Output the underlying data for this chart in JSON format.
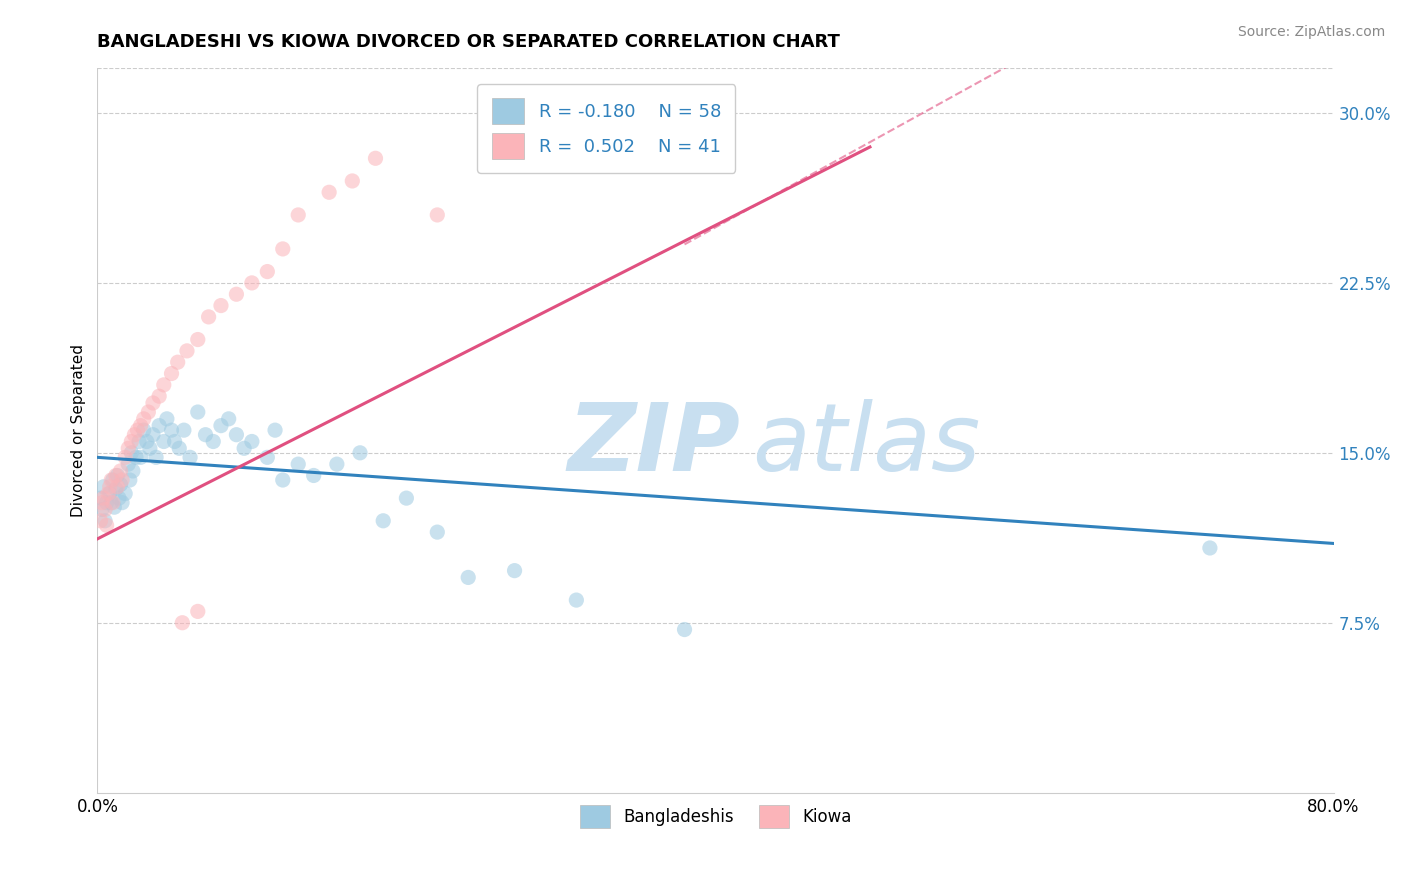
{
  "title": "BANGLADESHI VS KIOWA DIVORCED OR SEPARATED CORRELATION CHART",
  "source": "Source: ZipAtlas.com",
  "ylabel": "Divorced or Separated",
  "xlim": [
    0.0,
    0.8
  ],
  "ylim": [
    0.0,
    0.32
  ],
  "ytick_labels": [
    "7.5%",
    "15.0%",
    "22.5%",
    "30.0%"
  ],
  "ytick_vals": [
    0.075,
    0.15,
    0.225,
    0.3
  ],
  "legend_r1": "R = -0.180",
  "legend_n1": "N = 58",
  "legend_r2": "R =  0.502",
  "legend_n2": "N = 41",
  "blue_color": "#9ecae1",
  "pink_color": "#fbb4b9",
  "blue_line_color": "#3182bd",
  "pink_line_color": "#e05080",
  "background_color": "#ffffff",
  "watermark_zip": "ZIP",
  "watermark_atlas": "atlas",
  "blue_scatter_x": [
    0.002,
    0.003,
    0.004,
    0.005,
    0.006,
    0.008,
    0.009,
    0.01,
    0.011,
    0.012,
    0.013,
    0.014,
    0.015,
    0.016,
    0.018,
    0.02,
    0.021,
    0.022,
    0.023,
    0.025,
    0.027,
    0.028,
    0.03,
    0.032,
    0.034,
    0.036,
    0.038,
    0.04,
    0.043,
    0.045,
    0.048,
    0.05,
    0.053,
    0.056,
    0.06,
    0.065,
    0.07,
    0.075,
    0.08,
    0.085,
    0.09,
    0.095,
    0.1,
    0.11,
    0.115,
    0.12,
    0.13,
    0.14,
    0.155,
    0.17,
    0.185,
    0.2,
    0.22,
    0.24,
    0.27,
    0.31,
    0.38,
    0.72
  ],
  "blue_scatter_y": [
    0.13,
    0.125,
    0.135,
    0.12,
    0.128,
    0.132,
    0.128,
    0.138,
    0.126,
    0.134,
    0.14,
    0.13,
    0.136,
    0.128,
    0.132,
    0.145,
    0.138,
    0.15,
    0.142,
    0.148,
    0.155,
    0.148,
    0.16,
    0.155,
    0.152,
    0.158,
    0.148,
    0.162,
    0.155,
    0.165,
    0.16,
    0.155,
    0.152,
    0.16,
    0.148,
    0.168,
    0.158,
    0.155,
    0.162,
    0.165,
    0.158,
    0.152,
    0.155,
    0.148,
    0.16,
    0.138,
    0.145,
    0.14,
    0.145,
    0.15,
    0.12,
    0.13,
    0.115,
    0.095,
    0.098,
    0.085,
    0.072,
    0.108
  ],
  "pink_scatter_x": [
    0.002,
    0.003,
    0.004,
    0.005,
    0.006,
    0.007,
    0.008,
    0.009,
    0.01,
    0.012,
    0.013,
    0.015,
    0.016,
    0.018,
    0.02,
    0.022,
    0.024,
    0.026,
    0.028,
    0.03,
    0.033,
    0.036,
    0.04,
    0.043,
    0.048,
    0.052,
    0.058,
    0.065,
    0.072,
    0.08,
    0.09,
    0.1,
    0.11,
    0.12,
    0.13,
    0.15,
    0.165,
    0.18,
    0.055,
    0.065,
    0.22
  ],
  "pink_scatter_y": [
    0.12,
    0.128,
    0.13,
    0.125,
    0.118,
    0.132,
    0.135,
    0.138,
    0.128,
    0.14,
    0.135,
    0.142,
    0.138,
    0.148,
    0.152,
    0.155,
    0.158,
    0.16,
    0.162,
    0.165,
    0.168,
    0.172,
    0.175,
    0.18,
    0.185,
    0.19,
    0.195,
    0.2,
    0.21,
    0.215,
    0.22,
    0.225,
    0.23,
    0.24,
    0.255,
    0.265,
    0.27,
    0.28,
    0.075,
    0.08,
    0.255
  ],
  "blue_trend_x": [
    0.0,
    0.8
  ],
  "blue_trend_y": [
    0.148,
    0.11
  ],
  "pink_trend_x": [
    0.0,
    0.5
  ],
  "pink_trend_y": [
    0.112,
    0.285
  ]
}
